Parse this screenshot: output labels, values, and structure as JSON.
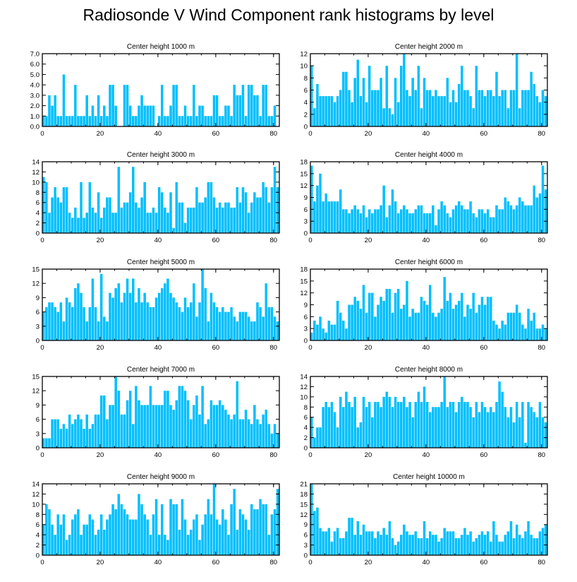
{
  "title": "Radiosonde V Wind Component rank histograms by level",
  "colors": {
    "bar": "#00BFFF",
    "axis": "#000000",
    "background": "#ffffff"
  },
  "chart_data": [
    {
      "type": "bar",
      "title": "Center height 1000 m",
      "xlim": [
        0,
        82
      ],
      "ylim": [
        0,
        7
      ],
      "xticks": [
        0,
        20,
        40,
        60,
        80
      ],
      "yticks": [
        "0.0",
        "1.0",
        "2.0",
        "3.0",
        "4.0",
        "5.0",
        "6.0",
        "7.0"
      ],
      "values": [
        1,
        1,
        3,
        2,
        3,
        1,
        1,
        5,
        1,
        1,
        1,
        4,
        1,
        1,
        1,
        3,
        1,
        2,
        1,
        3,
        1,
        2,
        1,
        4,
        4,
        2,
        0,
        0,
        4,
        4,
        2,
        1,
        1,
        2,
        3,
        2,
        2,
        2,
        2,
        0,
        1,
        4,
        1,
        1,
        2,
        4,
        4,
        1,
        1,
        2,
        1,
        1,
        4,
        1,
        2,
        2,
        1,
        1,
        1,
        3,
        3,
        1,
        1,
        2,
        2,
        1,
        4,
        3,
        3,
        4,
        1,
        4,
        4,
        3,
        3,
        1,
        4,
        4,
        1,
        1,
        2,
        0
      ]
    },
    {
      "type": "bar",
      "title": "Center height 2000 m",
      "xlim": [
        0,
        82
      ],
      "ylim": [
        0,
        12
      ],
      "xticks": [
        0,
        20,
        40,
        60,
        80
      ],
      "yticks": [
        "0",
        "2",
        "4",
        "6",
        "8",
        "10",
        "12"
      ],
      "values": [
        10,
        3,
        7,
        5,
        5,
        5,
        5,
        5,
        4,
        5,
        6,
        9,
        9,
        6,
        4,
        8,
        11,
        5,
        8,
        4,
        10,
        6,
        6,
        6,
        8,
        3,
        10,
        3,
        2,
        8,
        4,
        10,
        12,
        6,
        5,
        8,
        6,
        10,
        3,
        8,
        6,
        6,
        5,
        6,
        5,
        5,
        5,
        8,
        4,
        6,
        4,
        7,
        10,
        6,
        6,
        5,
        3,
        10,
        6,
        6,
        5,
        6,
        6,
        5,
        9,
        5,
        6,
        6,
        3,
        6,
        6,
        12,
        3,
        6,
        6,
        6,
        9,
        7,
        5,
        4,
        6,
        5
      ]
    },
    {
      "type": "bar",
      "title": "Center height 3000 m",
      "xlim": [
        0,
        82
      ],
      "ylim": [
        0,
        14
      ],
      "xticks": [
        0,
        20,
        40,
        60,
        80
      ],
      "yticks": [
        "0",
        "2",
        "4",
        "6",
        "8",
        "10",
        "12",
        "14"
      ],
      "values": [
        11,
        10,
        4,
        7,
        9,
        7,
        6,
        9,
        9,
        4,
        3,
        5,
        3,
        10,
        3,
        4,
        10,
        5,
        4,
        8,
        3,
        5,
        7,
        7,
        4,
        4,
        13,
        5,
        6,
        6,
        8,
        13,
        6,
        5,
        7,
        10,
        4,
        4,
        5,
        4,
        9,
        8,
        5,
        4,
        8,
        1,
        10,
        6,
        6,
        2,
        5,
        5,
        5,
        9,
        6,
        6,
        7,
        10,
        10,
        7,
        5,
        6,
        5,
        6,
        6,
        5,
        5,
        9,
        6,
        9,
        8,
        4,
        6,
        8,
        7,
        7,
        10,
        9,
        6,
        9,
        13,
        9
      ]
    },
    {
      "type": "bar",
      "title": "Center height 4000 m",
      "xlim": [
        0,
        82
      ],
      "ylim": [
        0,
        18
      ],
      "xticks": [
        0,
        20,
        40,
        60,
        80
      ],
      "yticks": [
        "0",
        "3",
        "6",
        "9",
        "12",
        "15",
        "18"
      ],
      "values": [
        17,
        8,
        12,
        15,
        8,
        10,
        8,
        8,
        8,
        8,
        11,
        6,
        6,
        5,
        6,
        7,
        6,
        5,
        7,
        4,
        6,
        5,
        6,
        6,
        7,
        12,
        4,
        7,
        11,
        8,
        5,
        6,
        7,
        6,
        5,
        5,
        6,
        7,
        7,
        5,
        5,
        5,
        7,
        2,
        6,
        8,
        7,
        5,
        4,
        6,
        7,
        8,
        7,
        6,
        6,
        8,
        5,
        4,
        6,
        6,
        5,
        6,
        4,
        4,
        7,
        6,
        6,
        9,
        8,
        7,
        6,
        7,
        9,
        8,
        7,
        7,
        7,
        12,
        9,
        10,
        17,
        11
      ]
    },
    {
      "type": "bar",
      "title": "Center height 5000 m",
      "xlim": [
        0,
        82
      ],
      "ylim": [
        0,
        15
      ],
      "xticks": [
        0,
        20,
        40,
        60,
        80
      ],
      "yticks": [
        "0",
        "3",
        "6",
        "9",
        "12",
        "15"
      ],
      "values": [
        6,
        7,
        8,
        8,
        7,
        6,
        8,
        4,
        9,
        8,
        7,
        11,
        12,
        10,
        7,
        4,
        7,
        13,
        7,
        4,
        14,
        5,
        4,
        10,
        9,
        11,
        12,
        8,
        10,
        13,
        10,
        13,
        8,
        11,
        8,
        10,
        8,
        7,
        7,
        9,
        10,
        11,
        12,
        13,
        10,
        9,
        8,
        7,
        6,
        9,
        7,
        8,
        12,
        5,
        8,
        15,
        11,
        4,
        10,
        8,
        7,
        6,
        7,
        6,
        6,
        7,
        5,
        4,
        6,
        6,
        6,
        5,
        4,
        4,
        8,
        7,
        5,
        12,
        7,
        7,
        5,
        4
      ]
    },
    {
      "type": "bar",
      "title": "Center height 6000 m",
      "xlim": [
        0,
        82
      ],
      "ylim": [
        0,
        18
      ],
      "xticks": [
        0,
        20,
        40,
        60,
        80
      ],
      "yticks": [
        "0",
        "3",
        "6",
        "9",
        "12",
        "15",
        "18"
      ],
      "values": [
        2,
        5,
        4,
        6,
        3,
        2,
        5,
        4,
        4,
        10,
        7,
        5,
        3,
        9,
        9,
        11,
        10,
        8,
        14,
        7,
        12,
        12,
        6,
        9,
        11,
        10,
        13,
        13,
        7,
        12,
        13,
        8,
        9,
        15,
        6,
        8,
        7,
        7,
        11,
        10,
        9,
        14,
        7,
        6,
        7,
        8,
        16,
        10,
        12,
        8,
        9,
        10,
        12,
        6,
        9,
        8,
        12,
        7,
        9,
        11,
        9,
        11,
        11,
        5,
        4,
        3,
        5,
        4,
        7,
        7,
        7,
        9,
        7,
        4,
        3,
        8,
        5,
        7,
        3,
        3,
        4,
        3
      ]
    },
    {
      "type": "bar",
      "title": "Center height 7000 m",
      "xlim": [
        0,
        82
      ],
      "ylim": [
        0,
        15
      ],
      "xticks": [
        0,
        20,
        40,
        60,
        80
      ],
      "yticks": [
        "0",
        "3",
        "6",
        "9",
        "12",
        "15"
      ],
      "values": [
        2,
        2,
        2,
        6,
        6,
        6,
        4,
        5,
        4,
        7,
        5,
        6,
        7,
        6,
        4,
        7,
        4,
        5,
        7,
        7,
        11,
        11,
        6,
        9,
        9,
        15,
        12,
        7,
        7,
        10,
        12,
        5,
        13,
        10,
        9,
        9,
        9,
        13,
        9,
        9,
        9,
        9,
        12,
        12,
        9,
        8,
        10,
        13,
        13,
        12,
        10,
        6,
        9,
        11,
        7,
        13,
        5,
        6,
        10,
        9,
        9,
        10,
        9,
        8,
        7,
        6,
        7,
        14,
        6,
        6,
        8,
        6,
        5,
        9,
        6,
        5,
        7,
        8,
        5,
        3,
        5,
        3
      ]
    },
    {
      "type": "bar",
      "title": "Center height 8000 m",
      "xlim": [
        0,
        82
      ],
      "ylim": [
        0,
        14
      ],
      "xticks": [
        0,
        20,
        40,
        60,
        80
      ],
      "yticks": [
        "0",
        "2",
        "4",
        "6",
        "8",
        "10",
        "12",
        "14"
      ],
      "values": [
        6,
        2,
        4,
        4,
        8,
        9,
        8,
        9,
        7,
        4,
        10,
        8,
        11,
        9,
        8,
        10,
        4,
        5,
        10,
        8,
        9,
        6,
        9,
        9,
        8,
        10,
        11,
        10,
        8,
        10,
        9,
        9,
        10,
        8,
        9,
        6,
        9,
        11,
        9,
        12,
        9,
        7,
        8,
        8,
        8,
        9,
        14,
        8,
        9,
        9,
        7,
        9,
        10,
        9,
        9,
        8,
        6,
        9,
        7,
        9,
        8,
        7,
        8,
        7,
        9,
        13,
        11,
        8,
        6,
        8,
        5,
        9,
        6,
        9,
        1,
        9,
        8,
        7,
        6,
        9,
        6,
        5
      ]
    },
    {
      "type": "bar",
      "title": "Center height 9000 m",
      "xlim": [
        0,
        82
      ],
      "ylim": [
        0,
        14
      ],
      "xticks": [
        0,
        20,
        40,
        60,
        80
      ],
      "yticks": [
        "0",
        "2",
        "4",
        "6",
        "8",
        "10",
        "12",
        "14"
      ],
      "values": [
        6,
        10,
        9,
        6,
        4,
        8,
        6,
        8,
        3,
        4,
        7,
        8,
        9,
        4,
        6,
        6,
        8,
        7,
        4,
        5,
        8,
        5,
        7,
        8,
        10,
        9,
        12,
        10,
        9,
        8,
        7,
        7,
        7,
        12,
        10,
        8,
        7,
        4,
        8,
        11,
        4,
        10,
        4,
        3,
        11,
        10,
        10,
        5,
        11,
        7,
        4,
        5,
        7,
        8,
        3,
        6,
        8,
        11,
        8,
        14,
        7,
        6,
        9,
        7,
        4,
        10,
        13,
        5,
        9,
        8,
        7,
        5,
        10,
        9,
        9,
        11,
        10,
        10,
        4,
        8,
        9,
        13
      ]
    },
    {
      "type": "bar",
      "title": "Center height 10000 m",
      "xlim": [
        0,
        82
      ],
      "ylim": [
        0,
        21
      ],
      "xticks": [
        0,
        20,
        40,
        60,
        80
      ],
      "yticks": [
        "0",
        "3",
        "6",
        "9",
        "12",
        "15",
        "18",
        "21"
      ],
      "values": [
        21,
        13,
        14,
        8,
        7,
        7,
        8,
        4,
        7,
        8,
        5,
        5,
        7,
        11,
        11,
        6,
        10,
        6,
        9,
        7,
        7,
        7,
        5,
        7,
        6,
        8,
        6,
        10,
        5,
        3,
        4,
        6,
        9,
        7,
        6,
        6,
        7,
        5,
        5,
        10,
        5,
        7,
        6,
        6,
        4,
        5,
        8,
        7,
        7,
        7,
        5,
        5,
        6,
        8,
        6,
        7,
        4,
        5,
        6,
        7,
        6,
        7,
        4,
        10,
        6,
        4,
        4,
        6,
        7,
        10,
        5,
        9,
        6,
        5,
        7,
        10,
        6,
        5,
        5,
        7,
        8,
        9
      ]
    }
  ]
}
